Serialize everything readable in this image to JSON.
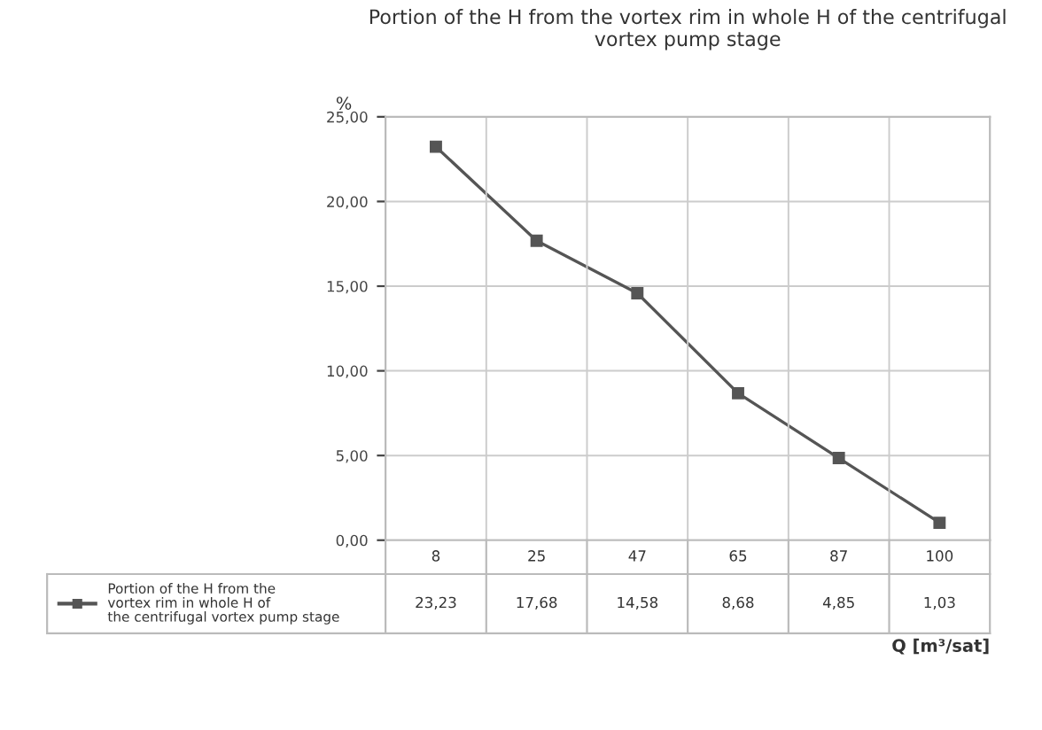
{
  "chart_data": {
    "type": "line",
    "title": "Portion of the H from the vortex rim in whole H of the centrifugal vortex pump stage",
    "xlabel": "Q [m³/sat]",
    "ylabel": "%",
    "categories": [
      "8",
      "25",
      "47",
      "65",
      "87",
      "100"
    ],
    "series": [
      {
        "name": "Portion of the H from the vortex rim in whole H of the centrifugal vortex pump stage",
        "color": "#555555",
        "values": [
          23.23,
          17.68,
          14.58,
          8.68,
          4.85,
          1.03
        ],
        "value_labels": [
          "23,23",
          "17,68",
          "14,58",
          "8,68",
          "4,85",
          "1,03"
        ]
      }
    ],
    "ylim": [
      0,
      25
    ],
    "yticks": [
      {
        "value": 0,
        "label": "0,00"
      },
      {
        "value": 5,
        "label": "5,00"
      },
      {
        "value": 10,
        "label": "10,00"
      },
      {
        "value": 15,
        "label": "15,00"
      },
      {
        "value": 20,
        "label": "20,00"
      },
      {
        "value": 25,
        "label": "25,00"
      }
    ],
    "grid": true,
    "legend": "bottom",
    "marker": "square",
    "line_style": "solid"
  }
}
